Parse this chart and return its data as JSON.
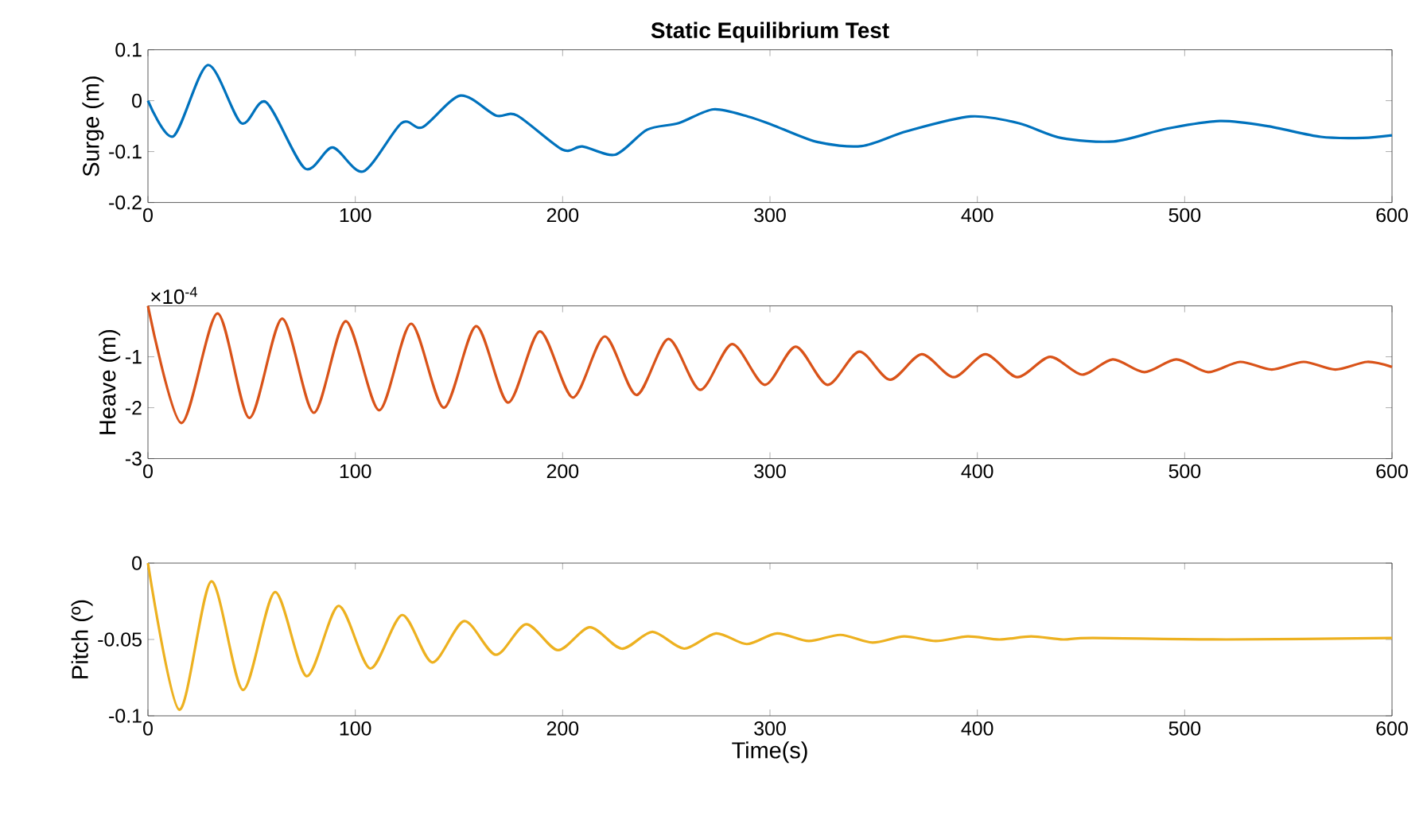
{
  "chart_data": [
    {
      "type": "line",
      "title": "Static Equilibrium Test",
      "ylabel": "Surge (m)",
      "x": [
        0,
        12.3,
        28.9,
        45,
        57,
        75.7,
        89,
        103.9,
        122.3,
        132.5,
        150.7,
        167.8,
        178,
        199.8,
        209.5,
        225.4,
        240.7,
        256,
        272.7,
        289.3,
        300.8,
        322.6,
        344.3,
        366,
        396.8,
        419.8,
        440.3,
        465.8,
        491.4,
        517,
        540,
        565.6,
        586,
        600
      ],
      "series": [
        {
          "color": "#0072bd",
          "values": [
            0,
            -0.07,
            0.07,
            -0.044,
            -0.003,
            -0.133,
            -0.092,
            -0.139,
            -0.044,
            -0.052,
            0.01,
            -0.029,
            -0.029,
            -0.096,
            -0.09,
            -0.106,
            -0.057,
            -0.044,
            -0.017,
            -0.031,
            -0.047,
            -0.081,
            -0.089,
            -0.06,
            -0.031,
            -0.044,
            -0.073,
            -0.08,
            -0.055,
            -0.04,
            -0.05,
            -0.071,
            -0.073,
            -0.068
          ]
        }
      ],
      "xlim": [
        0,
        600
      ],
      "xticks": [
        0,
        100,
        200,
        300,
        400,
        500,
        600
      ],
      "ylim": [
        -0.2,
        0.1
      ],
      "yticks": [
        -0.2,
        -0.1,
        0,
        0.1
      ]
    },
    {
      "type": "line",
      "ylabel": "Heave (m)",
      "annotations": [
        "×10$^{-4}$"
      ],
      "x": [
        0,
        16.1,
        33.5,
        48.9,
        64.7,
        80,
        95.4,
        111.5,
        126.9,
        142.7,
        158.3,
        173.7,
        189,
        204.9,
        220.3,
        235.6,
        251,
        266.3,
        281.7,
        297.5,
        312.4,
        327.7,
        343,
        357.9,
        373.2,
        388.6,
        403.9,
        419.3,
        435.1,
        450.5,
        465.3,
        480.6,
        496,
        511.3,
        526.7,
        542,
        557.4,
        572.7,
        588,
        600
      ],
      "series": [
        {
          "color": "#d95319",
          "values": [
            0,
            -2.3,
            -0.15,
            -2.2,
            -0.25,
            -2.1,
            -0.3,
            -2.05,
            -0.35,
            -2.0,
            -0.4,
            -1.9,
            -0.5,
            -1.8,
            -0.6,
            -1.75,
            -0.65,
            -1.65,
            -0.75,
            -1.55,
            -0.8,
            -1.55,
            -0.9,
            -1.45,
            -0.95,
            -1.4,
            -0.95,
            -1.4,
            -1.0,
            -1.35,
            -1.05,
            -1.3,
            -1.05,
            -1.3,
            -1.1,
            -1.25,
            -1.1,
            -1.25,
            -1.1,
            -1.2
          ]
        }
      ],
      "xlim": [
        0,
        600
      ],
      "xticks": [
        0,
        100,
        200,
        300,
        400,
        500,
        600
      ],
      "ylim": [
        -3,
        0
      ],
      "yticks": [
        -3,
        -2,
        -1
      ]
    },
    {
      "type": "line",
      "ylabel": "Pitch (º)",
      "xlabel": "Time(s)",
      "x": [
        0,
        15.1,
        30.5,
        45.8,
        61.2,
        76.5,
        91.9,
        107.2,
        122.6,
        137.1,
        152.5,
        167.8,
        182.4,
        197.8,
        213.1,
        228.5,
        243.3,
        258.6,
        274,
        288.8,
        303.4,
        318.7,
        334,
        349.4,
        364.7,
        380,
        395.4,
        410.7,
        426,
        441.4,
        455.6,
        520,
        600
      ],
      "series": [
        {
          "color": "#edb120",
          "values": [
            0,
            -0.096,
            -0.012,
            -0.083,
            -0.019,
            -0.074,
            -0.028,
            -0.069,
            -0.034,
            -0.065,
            -0.038,
            -0.06,
            -0.04,
            -0.057,
            -0.042,
            -0.056,
            -0.045,
            -0.056,
            -0.046,
            -0.053,
            -0.046,
            -0.051,
            -0.047,
            -0.052,
            -0.048,
            -0.051,
            -0.048,
            -0.05,
            -0.048,
            -0.05,
            -0.049,
            -0.05,
            -0.049
          ]
        }
      ],
      "xlim": [
        0,
        600
      ],
      "xticks": [
        0,
        100,
        200,
        300,
        400,
        500,
        600
      ],
      "ylim": [
        -0.1,
        0
      ],
      "yticks": [
        -0.1,
        -0.05,
        0
      ]
    }
  ]
}
